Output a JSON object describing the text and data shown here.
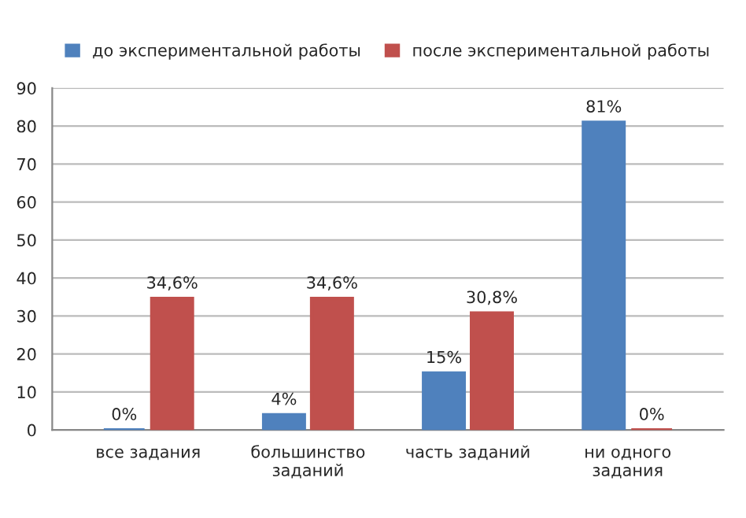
{
  "chart_data": {
    "type": "bar",
    "categories": [
      "все задания",
      "большинство\nзаданий",
      "часть заданий",
      "ни одного\nзадания"
    ],
    "series": [
      {
        "name": "до экспериментальной работы",
        "color": "#4f81bd",
        "values": [
          0,
          4,
          15,
          81
        ],
        "value_labels": [
          "0%",
          "4%",
          "15%",
          "81%"
        ]
      },
      {
        "name": "после экспериментальной работы",
        "color": "#c0504d",
        "values": [
          34.6,
          34.6,
          30.8,
          0
        ],
        "value_labels": [
          "34,6%",
          "34,6%",
          "30,8%",
          "0%"
        ]
      }
    ],
    "ylim": [
      0,
      90
    ],
    "yticks": [
      0,
      10,
      20,
      30,
      40,
      50,
      60,
      70,
      80,
      90
    ],
    "grid": "y",
    "legend": "top"
  }
}
